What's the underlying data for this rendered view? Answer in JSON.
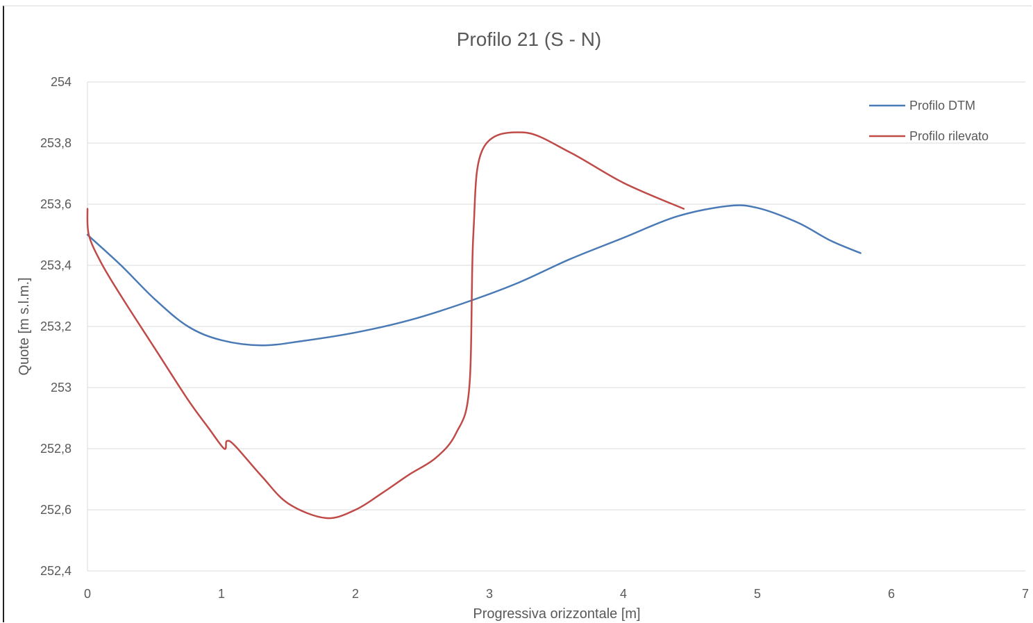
{
  "chart_data": {
    "type": "line",
    "title": "Profilo 21 (S - N)",
    "xlabel": "Progressiva orizzontale [m]",
    "ylabel": "Quote  [m s.l.m.]",
    "xlim": [
      0,
      7
    ],
    "ylim": [
      252.4,
      254
    ],
    "xticks": [
      0,
      1,
      2,
      3,
      4,
      5,
      6,
      7
    ],
    "yticks": [
      252.4,
      252.6,
      252.8,
      253,
      253.2,
      253.4,
      253.6,
      253.8,
      254
    ],
    "xtick_labels": [
      "0",
      "1",
      "2",
      "3",
      "4",
      "5",
      "6",
      "7"
    ],
    "ytick_labels": [
      "252,4",
      "252,6",
      "252,8",
      "253",
      "253,2",
      "253,4",
      "253,6",
      "253,8",
      "254"
    ],
    "grid": "horizontal",
    "legend_position": "top-right",
    "series": [
      {
        "name": "Profilo DTM",
        "color": "#4a7ab5",
        "points": [
          [
            0,
            253.5
          ],
          [
            0.25,
            253.4
          ],
          [
            0.5,
            253.29
          ],
          [
            0.75,
            253.2
          ],
          [
            1.0,
            253.155
          ],
          [
            1.3,
            253.138
          ],
          [
            1.6,
            253.152
          ],
          [
            2.0,
            253.18
          ],
          [
            2.4,
            253.22
          ],
          [
            2.8,
            253.275
          ],
          [
            3.2,
            253.34
          ],
          [
            3.6,
            253.42
          ],
          [
            4.0,
            253.49
          ],
          [
            4.4,
            253.56
          ],
          [
            4.78,
            253.594
          ],
          [
            5.0,
            253.588
          ],
          [
            5.3,
            253.54
          ],
          [
            5.55,
            253.48
          ],
          [
            5.77,
            253.44
          ]
        ]
      },
      {
        "name": "Profilo rilevato",
        "color": "#bf4a47",
        "points": [
          [
            0.0,
            253.585
          ],
          [
            0.01,
            253.5
          ],
          [
            0.1,
            253.41
          ],
          [
            0.25,
            253.3
          ],
          [
            0.5,
            253.13
          ],
          [
            0.75,
            252.96
          ],
          [
            0.9,
            252.87
          ],
          [
            1.02,
            252.8
          ],
          [
            1.04,
            252.825
          ],
          [
            1.1,
            252.81
          ],
          [
            1.3,
            252.71
          ],
          [
            1.5,
            252.62
          ],
          [
            1.78,
            252.573
          ],
          [
            2.0,
            252.6
          ],
          [
            2.2,
            252.655
          ],
          [
            2.4,
            252.715
          ],
          [
            2.6,
            252.77
          ],
          [
            2.75,
            252.85
          ],
          [
            2.85,
            253.0
          ],
          [
            2.88,
            253.5
          ],
          [
            2.95,
            253.78
          ],
          [
            3.25,
            253.835
          ],
          [
            3.6,
            253.77
          ],
          [
            4.0,
            253.67
          ],
          [
            4.45,
            253.585
          ]
        ]
      }
    ]
  }
}
